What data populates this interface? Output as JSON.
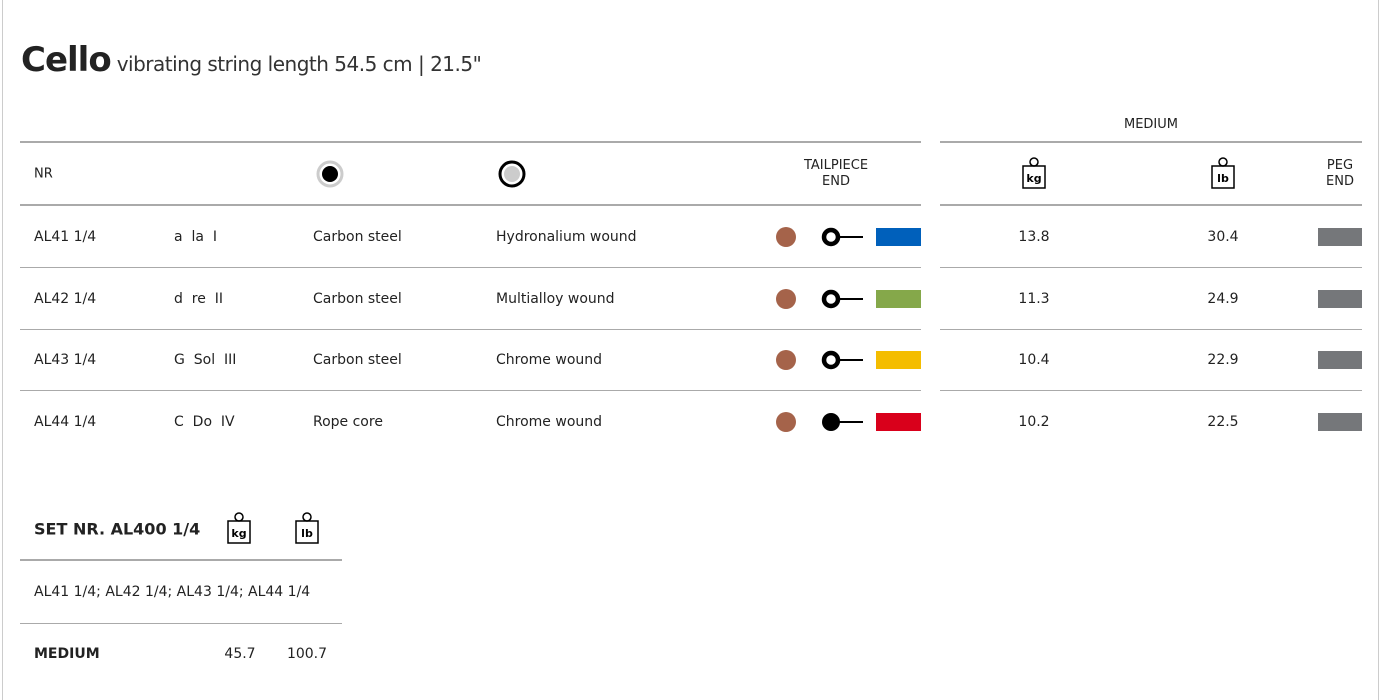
{
  "title": {
    "instrument": "Cello",
    "subtitle": "vibrating string length 54.5 cm | 21.5\""
  },
  "table": {
    "headers": {
      "nr": "NR",
      "core_icon": "core-icon",
      "winding_icon": "winding-icon",
      "tailpiece": [
        "TAILPIECE",
        "END"
      ],
      "group": "MEDIUM",
      "kg": "kg",
      "lb": "lb",
      "peg": [
        "PEG",
        "END"
      ]
    },
    "rows": [
      {
        "nr": "AL41 1/4",
        "note": "a  la  I",
        "core": "Carbon steel",
        "winding": "Hydronalium wound",
        "tail_color": "#0060bb",
        "loop": "ring",
        "kg": "13.8",
        "lb": "30.4"
      },
      {
        "nr": "AL42 1/4",
        "note": "d  re  II",
        "core": "Carbon steel",
        "winding": "Multialloy wound",
        "tail_color": "#85a84a",
        "loop": "ring",
        "kg": "11.3",
        "lb": "24.9"
      },
      {
        "nr": "AL43 1/4",
        "note": "G  Sol  III",
        "core": "Carbon steel",
        "winding": "Chrome wound",
        "tail_color": "#f4bd00",
        "loop": "ring",
        "kg": "10.4",
        "lb": "22.9"
      },
      {
        "nr": "AL44 1/4",
        "note": "C  Do  IV",
        "core": "Rope core",
        "winding": "Chrome wound",
        "tail_color": "#d9001b",
        "loop": "ball",
        "kg": "10.2",
        "lb": "22.5"
      }
    ],
    "dot_color": "#a5634a",
    "peg_color": "#75777a"
  },
  "set": {
    "title": "SET NR. AL400 1/4",
    "kg": "kg",
    "lb": "lb",
    "contents": "AL41 1/4; AL42 1/4; AL43 1/4; AL44 1/4",
    "tension_label": "MEDIUM",
    "total_kg": "45.7",
    "total_lb": "100.7"
  }
}
